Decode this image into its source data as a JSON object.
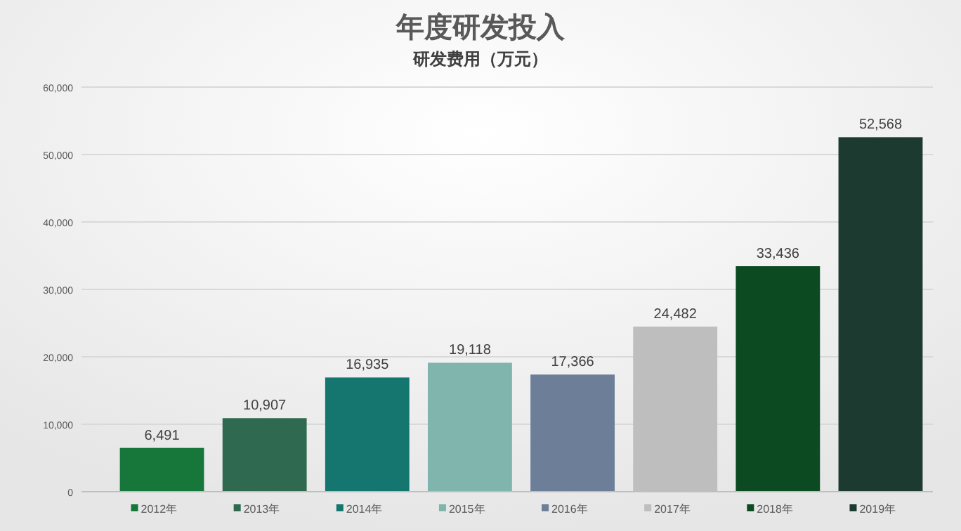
{
  "chart_data": {
    "type": "bar",
    "title": "年度研发投入",
    "subtitle": "研发费用（万元）",
    "categories": [
      "2012年",
      "2013年",
      "2014年",
      "2015年",
      "2016年",
      "2017年",
      "2018年",
      "2019年"
    ],
    "values": [
      6491,
      10907,
      16935,
      19118,
      17366,
      24482,
      33436,
      52568
    ],
    "value_labels": [
      "6,491",
      "10,907",
      "16,935",
      "19,118",
      "17,366",
      "24,482",
      "33,436",
      "52,568"
    ],
    "colors": [
      "#17763a",
      "#2f6a50",
      "#14766f",
      "#7fb5ad",
      "#6c7e98",
      "#bebebe",
      "#0c4a22",
      "#1c3a30"
    ],
    "ylim": [
      0,
      60000
    ],
    "yticks": [
      0,
      {
        "value": 10000,
        "label": "10,000"
      },
      {
        "value": 20000,
        "label": "20,000"
      },
      {
        "value": 30000,
        "label": "30,000"
      },
      {
        "value": 40000,
        "label": "40,000"
      },
      {
        "value": 50000,
        "label": "50,000"
      },
      {
        "value": 60000,
        "label": "60,000"
      }
    ],
    "grid": "y"
  }
}
